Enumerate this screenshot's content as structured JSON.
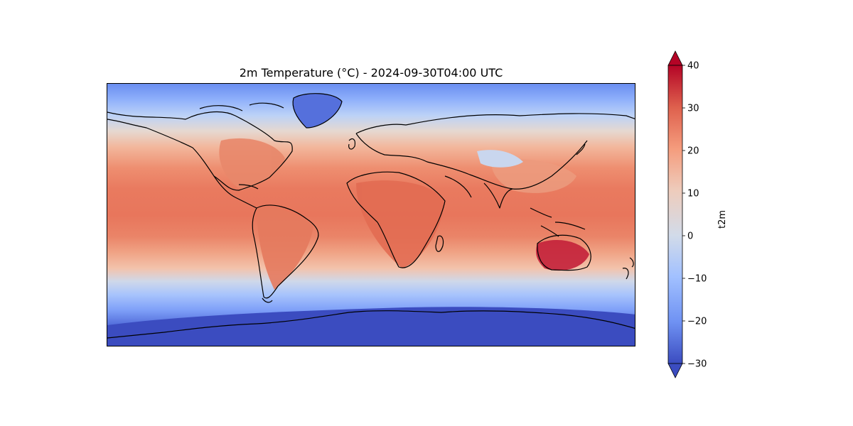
{
  "map": {
    "title": "2m Temperature (°C) - 2024-09-30T04:00 UTC",
    "projection": "PlateCarree",
    "coastlines": true,
    "extent_lon": [
      -180,
      180
    ],
    "extent_lat": [
      -90,
      90
    ]
  },
  "colorbar": {
    "label": "t2m",
    "colormap": "coolwarm",
    "vmin": -30,
    "vmax": 40,
    "extend": "both",
    "ticks": [
      "40",
      "30",
      "20",
      "10",
      "0",
      "−10",
      "−20",
      "−30"
    ],
    "tick_values": [
      40,
      30,
      20,
      10,
      0,
      -10,
      -20,
      -30
    ],
    "colors": {
      "min": "#3b4cc0",
      "cool": "#6f92f3",
      "pale_blue": "#aac7fd",
      "neutral": "#dddcdc",
      "pale_red": "#f7b89c",
      "warm": "#e7745b",
      "max": "#b40426"
    }
  }
}
